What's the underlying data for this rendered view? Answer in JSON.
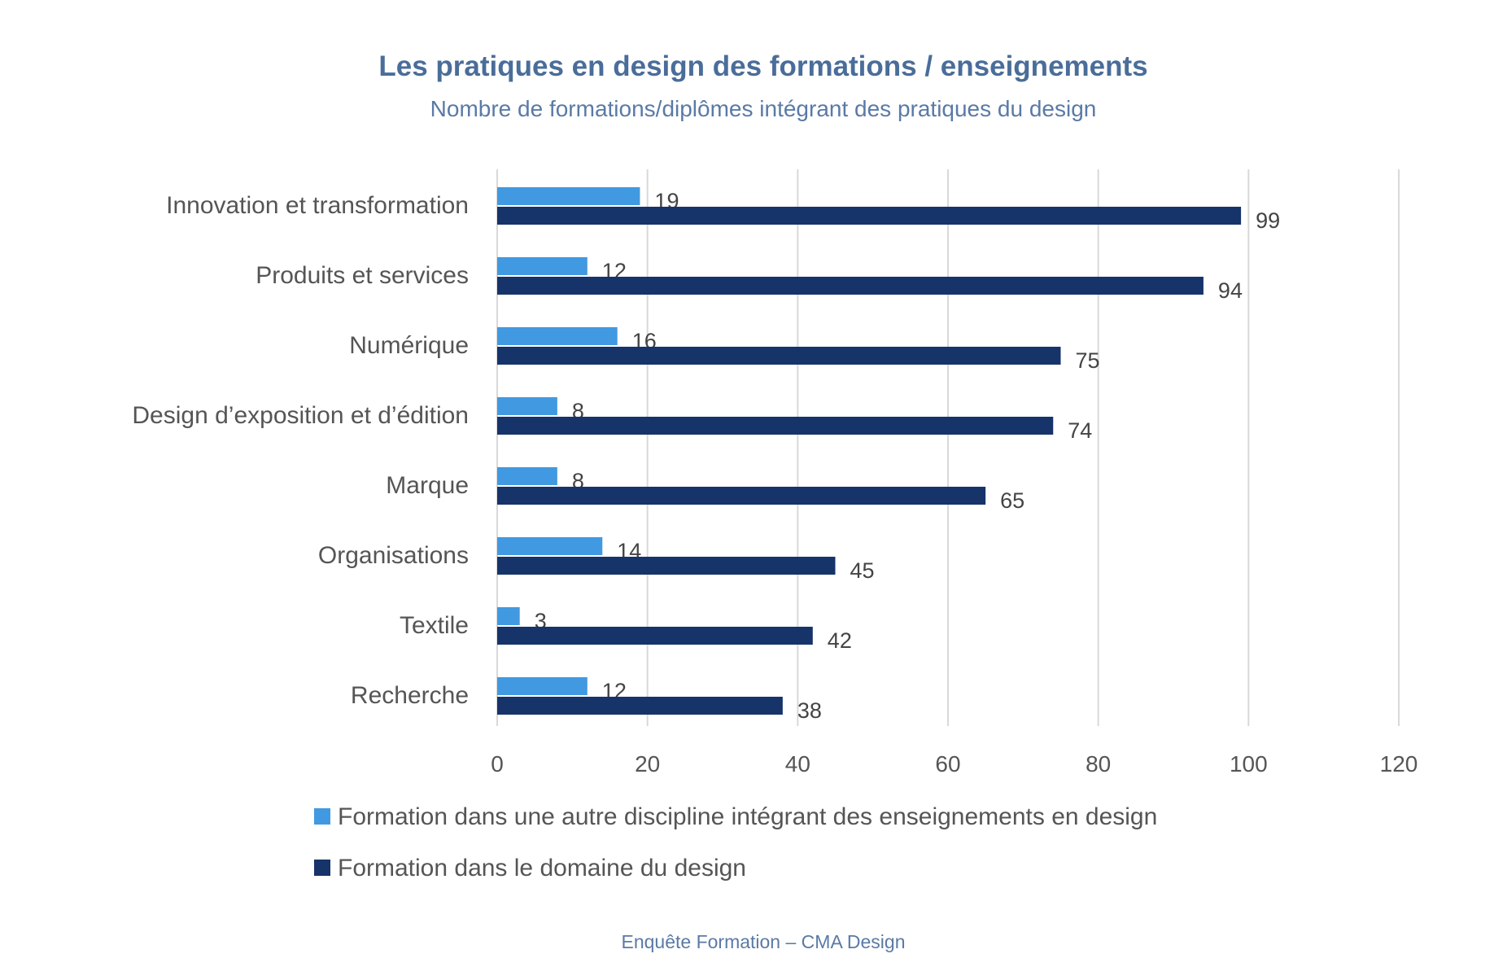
{
  "chart_data": {
    "type": "bar",
    "orientation": "horizontal",
    "title": "Les pratiques en design des formations / enseignements",
    "subtitle": "Nombre de formations/diplômes intégrant des pratiques du design",
    "categories": [
      "Innovation et transformation",
      "Produits et services",
      "Numérique",
      "Design d’exposition et d’édition",
      "Marque",
      "Organisations",
      "Textile",
      "Recherche"
    ],
    "series": [
      {
        "name": "Formation dans une autre discipline intégrant des enseignements en design",
        "color": "#4199e1",
        "values": [
          19,
          12,
          16,
          8,
          8,
          14,
          3,
          12
        ]
      },
      {
        "name": "Formation dans le domaine du design",
        "color": "#16336a",
        "values": [
          99,
          94,
          75,
          74,
          65,
          45,
          42,
          38
        ]
      }
    ],
    "xlim": [
      0,
      120
    ],
    "xticks": [
      0,
      20,
      40,
      60,
      80,
      100,
      120
    ],
    "xtick_labels": [
      "0",
      "20",
      "40",
      "60",
      "80",
      "100",
      "120"
    ],
    "grid": true,
    "legend_position": "bottom",
    "xlabel": "",
    "ylabel": ""
  },
  "source_note": "Enquête Formation – CMA Design"
}
